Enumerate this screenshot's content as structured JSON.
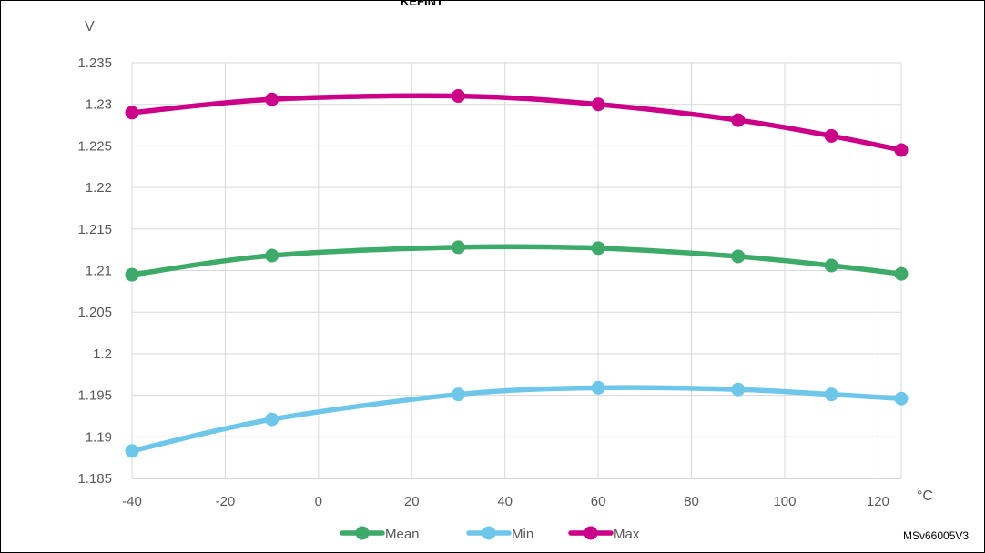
{
  "chart_data": {
    "type": "line",
    "title": "KEFINT",
    "ylabel": "V",
    "xlabel": "°C",
    "x": [
      -40,
      -10,
      30,
      60,
      90,
      110,
      125
    ],
    "xlim": [
      -40,
      125
    ],
    "ylim": [
      1.185,
      1.235
    ],
    "x_ticks": [
      "-40",
      "-20",
      "0",
      "20",
      "40",
      "60",
      "80",
      "100",
      "120"
    ],
    "x_tick_values": [
      -40,
      -20,
      0,
      20,
      40,
      60,
      80,
      100,
      120
    ],
    "y_ticks": [
      "1.185",
      "1.19",
      "1.195",
      "1.2",
      "1.205",
      "1.21",
      "1.215",
      "1.22",
      "1.225",
      "1.23",
      "1.235"
    ],
    "y_tick_values": [
      1.185,
      1.19,
      1.195,
      1.2,
      1.205,
      1.21,
      1.215,
      1.22,
      1.225,
      1.23,
      1.235
    ],
    "grid": true,
    "legend_position": "bottom",
    "series": [
      {
        "name": "Mean",
        "color": "#3daa6a",
        "values": [
          1.2095,
          1.2118,
          1.2128,
          1.2127,
          1.2117,
          1.2106,
          1.2096
        ]
      },
      {
        "name": "Min",
        "color": "#6ec6ea",
        "values": [
          1.1883,
          1.1921,
          1.1951,
          1.1959,
          1.1957,
          1.1951,
          1.1946
        ]
      },
      {
        "name": "Max",
        "color": "#cc0088",
        "values": [
          1.229,
          1.2306,
          1.231,
          1.23,
          1.2281,
          1.2262,
          1.2245
        ]
      }
    ],
    "reference": "MSv66005V3"
  }
}
